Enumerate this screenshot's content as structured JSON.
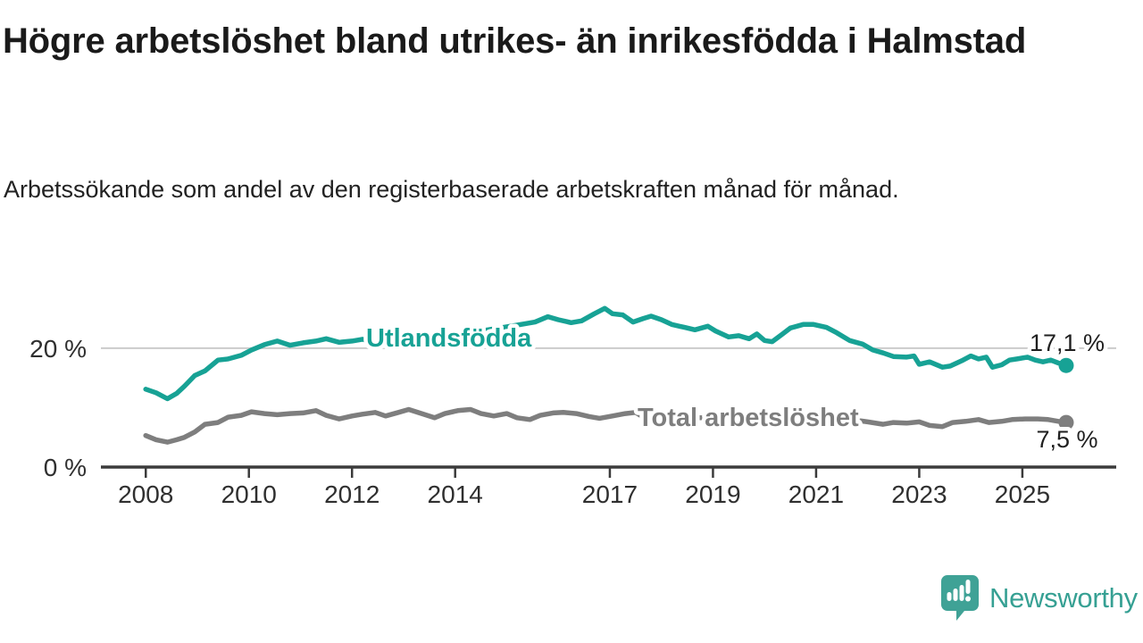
{
  "header": {
    "title": "Högre arbetslöshet bland utrikes- än inrikesfödda i Halmstad",
    "subtitle": "Arbetssökande som andel av den registerbaserade arbetskraften månad för månad."
  },
  "footer": {
    "brand": "Newsworthy",
    "logo_icon": "newsworthy-speech-bubble-bar-chart-icon"
  },
  "colors": {
    "foreign_born_line": "#17a295",
    "total_line": "#7e7e7e",
    "axis": "#3b3b3b",
    "axis_text": "#2f2f2f",
    "gridline": "#cccccc",
    "value_label_text": "#1f1f1f",
    "brand_teal": "#36a093",
    "background": "#ffffff"
  },
  "chart_data": {
    "type": "line",
    "title": "Högre arbetslöshet bland utrikes- än inrikesfödda i Halmstad",
    "subtitle": "Arbetssökande som andel av den registerbaserade arbetskraften månad för månad.",
    "unit": "%",
    "x_axis": {
      "range": [
        2007.13,
        2026.82
      ],
      "ticks": [
        2008,
        2010,
        2012,
        2014,
        2017,
        2019,
        2021,
        2023,
        2025
      ]
    },
    "y_axis": {
      "range": [
        0,
        27.5
      ],
      "ticks": [
        {
          "value": 0,
          "label": "0 %"
        },
        {
          "value": 20,
          "label": "20 %"
        }
      ],
      "gridline_values": [
        20
      ]
    },
    "series": [
      {
        "name": "Utlandsfödda",
        "color": "#17a295",
        "end_label": "17,1 %",
        "end_value": 17.1,
        "points": [
          [
            2008.0,
            13.1
          ],
          [
            2008.2,
            12.5
          ],
          [
            2008.42,
            11.5
          ],
          [
            2008.6,
            12.4
          ],
          [
            2008.75,
            13.6
          ],
          [
            2008.95,
            15.4
          ],
          [
            2009.15,
            16.2
          ],
          [
            2009.4,
            18.0
          ],
          [
            2009.6,
            18.2
          ],
          [
            2009.85,
            18.8
          ],
          [
            2010.05,
            19.7
          ],
          [
            2010.3,
            20.6
          ],
          [
            2010.55,
            21.2
          ],
          [
            2010.8,
            20.5
          ],
          [
            2011.05,
            20.9
          ],
          [
            2011.3,
            21.2
          ],
          [
            2011.5,
            21.6
          ],
          [
            2011.75,
            21.0
          ],
          [
            2012.0,
            21.2
          ],
          [
            2012.2,
            21.5
          ],
          [
            2012.45,
            20.9
          ],
          [
            2012.7,
            21.1
          ],
          [
            2013.0,
            21.4
          ],
          [
            2013.5,
            21.9
          ],
          [
            2014.0,
            22.4
          ],
          [
            2014.5,
            22.9
          ],
          [
            2015.0,
            23.6
          ],
          [
            2015.35,
            24.1
          ],
          [
            2015.55,
            24.4
          ],
          [
            2015.8,
            25.3
          ],
          [
            2016.0,
            24.8
          ],
          [
            2016.25,
            24.3
          ],
          [
            2016.45,
            24.6
          ],
          [
            2016.7,
            25.8
          ],
          [
            2016.9,
            26.7
          ],
          [
            2017.05,
            25.8
          ],
          [
            2017.25,
            25.6
          ],
          [
            2017.45,
            24.4
          ],
          [
            2017.65,
            25.0
          ],
          [
            2017.8,
            25.4
          ],
          [
            2018.0,
            24.8
          ],
          [
            2018.2,
            24.0
          ],
          [
            2018.45,
            23.5
          ],
          [
            2018.65,
            23.1
          ],
          [
            2018.9,
            23.7
          ],
          [
            2019.05,
            22.9
          ],
          [
            2019.3,
            21.9
          ],
          [
            2019.5,
            22.1
          ],
          [
            2019.7,
            21.6
          ],
          [
            2019.85,
            22.4
          ],
          [
            2020.0,
            21.3
          ],
          [
            2020.15,
            21.1
          ],
          [
            2020.35,
            22.4
          ],
          [
            2020.5,
            23.4
          ],
          [
            2020.75,
            24.0
          ],
          [
            2020.95,
            24.0
          ],
          [
            2021.2,
            23.5
          ],
          [
            2021.4,
            22.6
          ],
          [
            2021.65,
            21.3
          ],
          [
            2021.9,
            20.7
          ],
          [
            2022.1,
            19.7
          ],
          [
            2022.3,
            19.2
          ],
          [
            2022.5,
            18.6
          ],
          [
            2022.75,
            18.5
          ],
          [
            2022.9,
            18.7
          ],
          [
            2023.0,
            17.3
          ],
          [
            2023.2,
            17.7
          ],
          [
            2023.45,
            16.8
          ],
          [
            2023.6,
            17.0
          ],
          [
            2023.85,
            18.0
          ],
          [
            2024.0,
            18.7
          ],
          [
            2024.15,
            18.2
          ],
          [
            2024.3,
            18.5
          ],
          [
            2024.42,
            16.8
          ],
          [
            2024.6,
            17.2
          ],
          [
            2024.75,
            18.0
          ],
          [
            2024.9,
            18.2
          ],
          [
            2025.1,
            18.5
          ],
          [
            2025.25,
            18.0
          ],
          [
            2025.4,
            17.7
          ],
          [
            2025.55,
            18.0
          ],
          [
            2025.7,
            17.5
          ],
          [
            2025.85,
            17.1
          ]
        ]
      },
      {
        "name": "Total arbetslöshet",
        "color": "#7e7e7e",
        "end_label": "7,5 %",
        "end_value": 7.5,
        "points": [
          [
            2008.0,
            5.3
          ],
          [
            2008.2,
            4.6
          ],
          [
            2008.42,
            4.2
          ],
          [
            2008.6,
            4.6
          ],
          [
            2008.75,
            5.0
          ],
          [
            2008.95,
            5.9
          ],
          [
            2009.15,
            7.2
          ],
          [
            2009.4,
            7.5
          ],
          [
            2009.6,
            8.4
          ],
          [
            2009.85,
            8.7
          ],
          [
            2010.05,
            9.3
          ],
          [
            2010.3,
            9.0
          ],
          [
            2010.55,
            8.8
          ],
          [
            2010.8,
            9.0
          ],
          [
            2011.05,
            9.1
          ],
          [
            2011.3,
            9.5
          ],
          [
            2011.5,
            8.7
          ],
          [
            2011.75,
            8.1
          ],
          [
            2012.0,
            8.6
          ],
          [
            2012.2,
            8.9
          ],
          [
            2012.45,
            9.2
          ],
          [
            2012.65,
            8.6
          ],
          [
            2012.9,
            9.2
          ],
          [
            2013.1,
            9.7
          ],
          [
            2013.35,
            9.0
          ],
          [
            2013.6,
            8.3
          ],
          [
            2013.8,
            9.0
          ],
          [
            2014.05,
            9.5
          ],
          [
            2014.3,
            9.7
          ],
          [
            2014.5,
            9.0
          ],
          [
            2014.75,
            8.6
          ],
          [
            2015.0,
            9.0
          ],
          [
            2015.2,
            8.3
          ],
          [
            2015.45,
            8.0
          ],
          [
            2015.65,
            8.7
          ],
          [
            2015.9,
            9.1
          ],
          [
            2016.1,
            9.2
          ],
          [
            2016.35,
            9.0
          ],
          [
            2016.6,
            8.5
          ],
          [
            2016.8,
            8.2
          ],
          [
            2017.05,
            8.6
          ],
          [
            2017.3,
            9.0
          ],
          [
            2017.5,
            9.2
          ],
          [
            2017.65,
            8.4
          ],
          [
            2018.0,
            8.6
          ],
          [
            2018.5,
            8.4
          ],
          [
            2019.0,
            8.2
          ],
          [
            2019.5,
            8.1
          ],
          [
            2020.0,
            8.6
          ],
          [
            2020.5,
            9.0
          ],
          [
            2021.0,
            8.7
          ],
          [
            2021.5,
            8.2
          ],
          [
            2022.0,
            7.6
          ],
          [
            2022.3,
            7.2
          ],
          [
            2022.5,
            7.5
          ],
          [
            2022.75,
            7.4
          ],
          [
            2023.0,
            7.6
          ],
          [
            2023.2,
            7.0
          ],
          [
            2023.45,
            6.8
          ],
          [
            2023.65,
            7.5
          ],
          [
            2023.9,
            7.7
          ],
          [
            2024.15,
            8.0
          ],
          [
            2024.35,
            7.5
          ],
          [
            2024.6,
            7.7
          ],
          [
            2024.8,
            8.0
          ],
          [
            2025.05,
            8.1
          ],
          [
            2025.3,
            8.1
          ],
          [
            2025.5,
            8.0
          ],
          [
            2025.7,
            7.7
          ],
          [
            2025.85,
            7.5
          ]
        ]
      }
    ],
    "legend_position": "inline-labels-on-lines",
    "grid": "horizontal-only"
  }
}
